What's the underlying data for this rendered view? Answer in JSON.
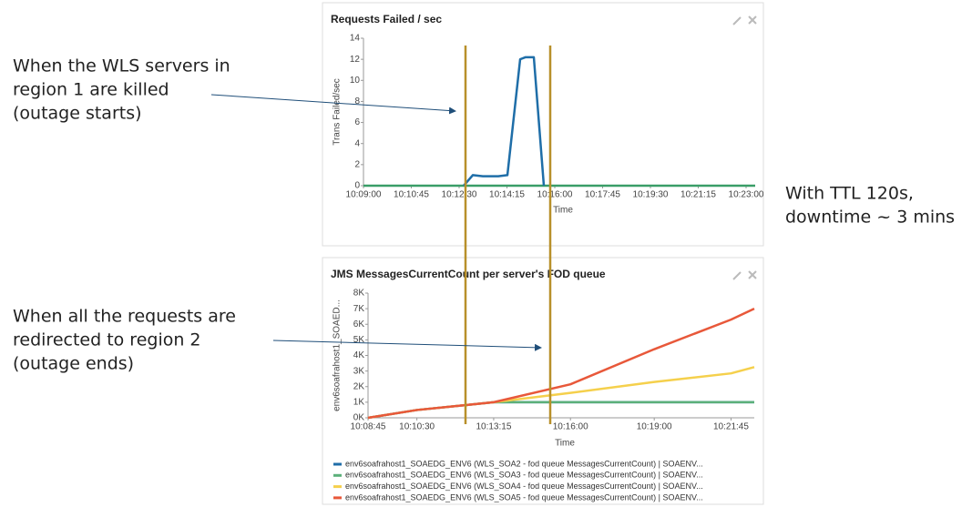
{
  "chart_data": [
    {
      "type": "line",
      "title": "Requests Failed / sec",
      "y_label": "Trans Failed/sec",
      "x_label": "Time",
      "x": [
        "10:09:00",
        "10:12:40",
        "10:13:00",
        "10:13:22",
        "10:13:56",
        "10:14:16",
        "10:14:44",
        "10:14:56",
        "10:15:14",
        "10:15:36",
        "10:23:20"
      ],
      "series": [
        {
          "color": "#3a9e68",
          "values": [
            0,
            0,
            0,
            0,
            0,
            0,
            0,
            0,
            0,
            0,
            0
          ]
        },
        {
          "color": "#1f6ea8",
          "values": [
            null,
            0,
            1,
            0.9,
            0.9,
            1,
            12,
            12.2,
            12.2,
            0,
            null
          ]
        }
      ],
      "xlim": [
        "10:09:00",
        "10:23:20"
      ],
      "xticks": [
        "10:09:00",
        "10:10:45",
        "10:12:30",
        "10:14:15",
        "10:16:00",
        "10:17:45",
        "10:19:30",
        "10:21:15",
        "10:23:00"
      ],
      "ylim": [
        0,
        14
      ],
      "yticks": [
        0,
        2,
        4,
        6,
        8,
        10,
        12,
        14
      ],
      "grid": false
    },
    {
      "type": "line",
      "title": "JMS MessagesCurrentCount per server's FOD queue",
      "y_label": "env6soafrahost1_SOAED...",
      "x_label": "Time",
      "x": [
        "10:08:45",
        "10:10:30",
        "10:13:15",
        "10:16:00",
        "10:19:00",
        "10:21:45",
        "10:22:35"
      ],
      "series": [
        {
          "name": "env6soafrahost1_SOAEDG_ENV6 (WLS_SOA2 - fod queue MessagesCurrentCount) | SOAENV...",
          "color": "#1f6ea8",
          "values": [
            0,
            500,
            1000,
            1000,
            1000,
            1000,
            1000
          ]
        },
        {
          "name": "env6soafrahost1_SOAEDG_ENV6 (WLS_SOA3 - fod queue MessagesCurrentCount) | SOAENV...",
          "color": "#5cb07a",
          "values": [
            0,
            500,
            1000,
            1000,
            1000,
            1000,
            1000
          ]
        },
        {
          "name": "env6soafrahost1_SOAEDG_ENV6 (WLS_SOA4 - fod queue MessagesCurrentCount) | SOAENV...",
          "color": "#f5d04c",
          "values": [
            0,
            500,
            1000,
            1600,
            2300,
            2850,
            3250
          ]
        },
        {
          "name": "env6soafrahost1_SOAEDG_ENV6 (WLS_SOA5 - fod queue MessagesCurrentCount) | SOAENV...",
          "color": "#e8583a",
          "values": [
            0,
            500,
            1000,
            2150,
            4400,
            6300,
            7000
          ]
        }
      ],
      "xlim": [
        "10:08:45",
        "10:22:35"
      ],
      "xticks": [
        "10:08:45",
        "10:10:30",
        "10:13:15",
        "10:16:00",
        "10:19:00",
        "10:21:45"
      ],
      "ylim": [
        0,
        8000
      ],
      "yticks": [
        {
          "value": 0,
          "label": "0K"
        },
        {
          "value": 1000,
          "label": "1K"
        },
        {
          "value": 2000,
          "label": "2K"
        },
        {
          "value": 3000,
          "label": "3K"
        },
        {
          "value": 4000,
          "label": "4K"
        },
        {
          "value": 5000,
          "label": "5K"
        },
        {
          "value": 6000,
          "label": "6K"
        },
        {
          "value": 7000,
          "label": "7K"
        },
        {
          "value": 8000,
          "label": "8K"
        }
      ],
      "grid": false,
      "legend": "bottom"
    }
  ],
  "annotations": [
    {
      "lines": [
        "When the WLS servers in",
        "region 1 are killed",
        "(outage starts)"
      ]
    },
    {
      "lines": [
        "When all the requests are",
        "redirected to region 2",
        "(outage ends)"
      ]
    },
    {
      "lines": [
        "With TTL 120s,",
        "downtime ~ 3 mins"
      ]
    }
  ]
}
